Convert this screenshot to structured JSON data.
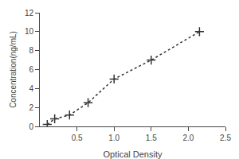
{
  "chart_data": {
    "type": "line",
    "xlabel": "Optical Density",
    "ylabel": "Concentration(ng/mL)",
    "x": [
      0.1,
      0.2,
      0.4,
      0.65,
      1.0,
      1.5,
      2.15
    ],
    "series": [
      {
        "values": [
          0.2,
          0.8,
          1.2,
          2.5,
          5.0,
          7.0,
          10.0
        ],
        "color": "#333333",
        "line_style": "dotted",
        "marker": "plus"
      }
    ],
    "xlim": [
      0,
      2.5
    ],
    "ylim": [
      0,
      12
    ],
    "xticks": [
      0.5,
      {
        "value": 1.0,
        "label": "1.0"
      },
      1.5,
      {
        "value": 2.0,
        "label": "2.0"
      },
      2.5
    ],
    "yticks": [
      0,
      2,
      4,
      6,
      8,
      10,
      12
    ],
    "grid": false
  }
}
